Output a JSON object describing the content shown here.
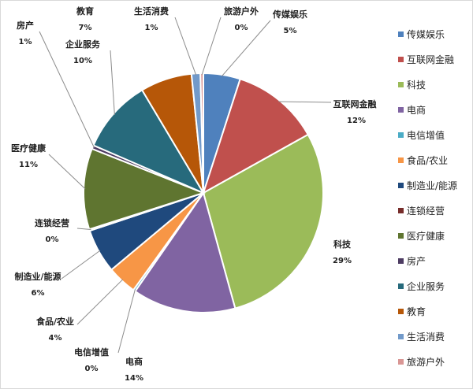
{
  "chart_data": {
    "type": "pie",
    "legend_position": "right",
    "slices": [
      {
        "label": "传媒娱乐",
        "percent_label": "5%",
        "value": 5,
        "color": "#4F81BD"
      },
      {
        "label": "互联网金融",
        "percent_label": "12%",
        "value": 12,
        "color": "#C0504D"
      },
      {
        "label": "科技",
        "percent_label": "29%",
        "value": 29,
        "color": "#9BBB59"
      },
      {
        "label": "电商",
        "percent_label": "14%",
        "value": 14,
        "color": "#8064A2"
      },
      {
        "label": "电信增值",
        "percent_label": "0%",
        "value": 0.3,
        "color": "#4BACC6"
      },
      {
        "label": "食品/农业",
        "percent_label": "4%",
        "value": 4,
        "color": "#F79646"
      },
      {
        "label": "制造业/能源",
        "percent_label": "6%",
        "value": 6,
        "color": "#1F497D"
      },
      {
        "label": "连锁经营",
        "percent_label": "0%",
        "value": 0.2,
        "color": "#772C2A"
      },
      {
        "label": "医疗健康",
        "percent_label": "11%",
        "value": 11,
        "color": "#5F7530"
      },
      {
        "label": "房产",
        "percent_label": "1%",
        "value": 0.5,
        "color": "#4D3B62"
      },
      {
        "label": "企业服务",
        "percent_label": "10%",
        "value": 10,
        "color": "#276A7C"
      },
      {
        "label": "教育",
        "percent_label": "7%",
        "value": 7,
        "color": "#B65708"
      },
      {
        "label": "生活消费",
        "percent_label": "1%",
        "value": 1.2,
        "color": "#729ACA"
      },
      {
        "label": "旅游户外",
        "percent_label": "0%",
        "value": 0.4,
        "color": "#D99694"
      }
    ]
  }
}
